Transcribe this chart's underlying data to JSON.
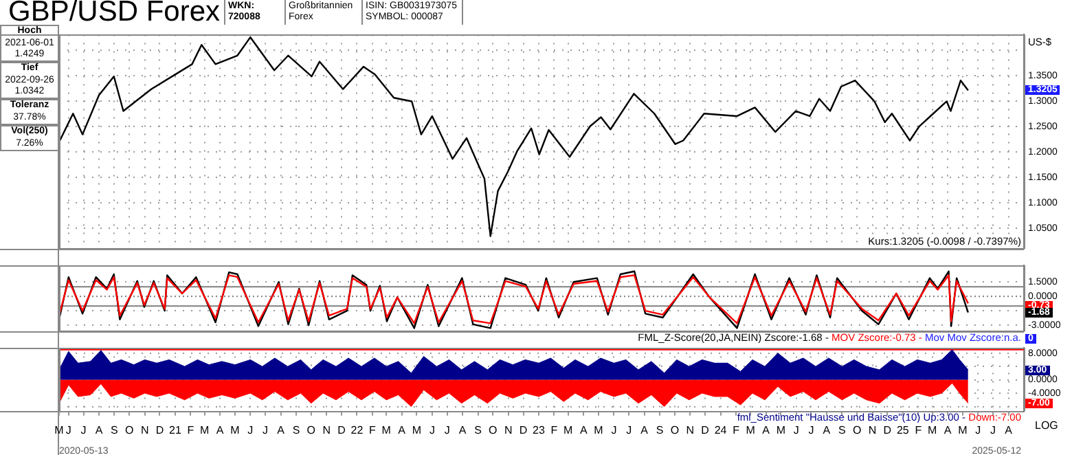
{
  "chart_data": [
    {
      "type": "line",
      "title": "GBP/USD Forex",
      "ylabel": "US-$",
      "color": "#000000",
      "x": [
        "2020-05-13",
        "2020-06-10",
        "2020-06-29",
        "2020-08-01",
        "2020-08-31",
        "2020-09-19",
        "2020-11-14",
        "2021-02-04",
        "2021-02-23",
        "2021-03-23",
        "2021-05-06",
        "2021-06-01",
        "2021-07-19",
        "2021-08-16",
        "2021-10-02",
        "2021-10-18",
        "2021-12-04",
        "2022-01-14",
        "2022-02-06",
        "2022-03-16",
        "2022-04-21",
        "2022-05-10",
        "2022-06-01",
        "2022-07-12",
        "2022-08-09",
        "2022-09-14",
        "2022-09-26",
        "2022-10-11",
        "2022-10-31",
        "2022-11-19",
        "2022-12-17",
        "2023-01-02",
        "2023-01-21",
        "2023-03-04",
        "2023-04-14",
        "2023-05-06",
        "2023-05-25",
        "2023-07-11",
        "2023-08-21",
        "2023-10-02",
        "2023-10-18",
        "2023-11-29",
        "2024-02-03",
        "2024-03-10",
        "2024-04-20",
        "2024-05-31",
        "2024-06-28",
        "2024-07-17",
        "2024-08-08",
        "2024-08-30",
        "2024-09-27",
        "2024-11-05",
        "2024-11-26",
        "2024-12-10",
        "2025-01-15",
        "2025-02-03",
        "2025-03-03",
        "2025-03-30",
        "2025-04-07",
        "2025-04-27",
        "2025-05-12"
      ],
      "values": [
        1.219,
        1.275,
        1.234,
        1.311,
        1.348,
        1.28,
        1.323,
        1.372,
        1.41,
        1.372,
        1.389,
        1.4249,
        1.36,
        1.389,
        1.348,
        1.377,
        1.323,
        1.367,
        1.352,
        1.306,
        1.299,
        1.234,
        1.27,
        1.186,
        1.227,
        1.147,
        1.0342,
        1.123,
        1.161,
        1.202,
        1.246,
        1.195,
        1.243,
        1.19,
        1.25,
        1.268,
        1.244,
        1.314,
        1.275,
        1.215,
        1.222,
        1.275,
        1.27,
        1.287,
        1.239,
        1.28,
        1.27,
        1.304,
        1.28,
        1.328,
        1.34,
        1.299,
        1.258,
        1.275,
        1.222,
        1.25,
        1.275,
        1.299,
        1.28,
        1.34,
        1.3205
      ],
      "xlim": [
        "2020-05-13",
        "2025-09-01"
      ],
      "ylim": [
        1.01,
        1.43
      ],
      "yticks": [
        {
          "value": 1.05,
          "label": "1.0500"
        },
        {
          "value": 1.1,
          "label": "1.1000"
        },
        {
          "value": 1.15,
          "label": "1.1500"
        },
        {
          "value": 1.2,
          "label": "1.2000"
        },
        {
          "value": 1.25,
          "label": "1.2500"
        },
        {
          "value": 1.3,
          "label": "1.3000"
        },
        {
          "value": 1.35,
          "label": "1.3500"
        },
        {
          "value": 1.4,
          "label": null
        }
      ],
      "xticks": [
        {
          "value": "2020-06-01",
          "label": null
        },
        {
          "value": "2020-07-01",
          "label": null
        },
        {
          "value": "2020-08-01",
          "label": null
        },
        {
          "value": "2020-09-01",
          "label": null
        },
        {
          "value": "2020-10-01",
          "label": null
        },
        {
          "value": "2020-11-01",
          "label": null
        },
        {
          "value": "2020-12-01",
          "label": null
        },
        {
          "value": "2021-01-01",
          "label": null
        },
        {
          "value": "2021-02-01",
          "label": null
        },
        {
          "value": "2021-03-01",
          "label": null
        },
        {
          "value": "2021-04-01",
          "label": null
        },
        {
          "value": "2021-05-01",
          "label": null
        },
        {
          "value": "2021-06-01",
          "label": null
        },
        {
          "value": "2021-07-01",
          "label": null
        },
        {
          "value": "2021-08-01",
          "label": null
        },
        {
          "value": "2021-09-01",
          "label": null
        },
        {
          "value": "2021-10-01",
          "label": null
        },
        {
          "value": "2021-11-01",
          "label": null
        },
        {
          "value": "2021-12-01",
          "label": null
        },
        {
          "value": "2022-01-01",
          "label": null
        },
        {
          "value": "2022-02-01",
          "label": null
        },
        {
          "value": "2022-03-01",
          "label": null
        },
        {
          "value": "2022-04-01",
          "label": null
        },
        {
          "value": "2022-05-01",
          "label": null
        },
        {
          "value": "2022-06-01",
          "label": null
        },
        {
          "value": "2022-07-01",
          "label": null
        },
        {
          "value": "2022-08-01",
          "label": null
        },
        {
          "value": "2022-09-01",
          "label": null
        },
        {
          "value": "2022-10-01",
          "label": null
        },
        {
          "value": "2022-11-01",
          "label": null
        },
        {
          "value": "2022-12-01",
          "label": null
        },
        {
          "value": "2023-01-01",
          "label": null
        },
        {
          "value": "2023-02-01",
          "label": null
        },
        {
          "value": "2023-03-01",
          "label": null
        },
        {
          "value": "2023-04-01",
          "label": null
        },
        {
          "value": "2023-05-01",
          "label": null
        },
        {
          "value": "2023-06-01",
          "label": null
        },
        {
          "value": "2023-07-01",
          "label": null
        },
        {
          "value": "2023-08-01",
          "label": null
        },
        {
          "value": "2023-09-01",
          "label": null
        },
        {
          "value": "2023-10-01",
          "label": null
        },
        {
          "value": "2023-11-01",
          "label": null
        },
        {
          "value": "2023-12-01",
          "label": null
        },
        {
          "value": "2024-01-01",
          "label": null
        },
        {
          "value": "2024-02-01",
          "label": null
        },
        {
          "value": "2024-03-01",
          "label": null
        },
        {
          "value": "2024-04-01",
          "label": null
        },
        {
          "value": "2024-05-01",
          "label": null
        },
        {
          "value": "2024-06-01",
          "label": null
        },
        {
          "value": "2024-07-01",
          "label": null
        },
        {
          "value": "2024-08-01",
          "label": null
        },
        {
          "value": "2024-09-01",
          "label": null
        },
        {
          "value": "2024-10-01",
          "label": null
        },
        {
          "value": "2024-11-01",
          "label": null
        },
        {
          "value": "2024-12-01",
          "label": null
        },
        {
          "value": "2025-01-01",
          "label": null
        },
        {
          "value": "2025-02-01",
          "label": null
        },
        {
          "value": "2025-03-01",
          "label": null
        },
        {
          "value": "2025-04-01",
          "label": null
        },
        {
          "value": "2025-05-01",
          "label": null
        },
        {
          "value": "2025-06-01",
          "label": null
        },
        {
          "value": "2025-07-01",
          "label": null
        },
        {
          "value": "2025-08-01",
          "label": null
        }
      ],
      "tick_labels": "y",
      "grid": true,
      "legend": false,
      "annotations": [
        "WKN: 720088",
        "Großbritannien Forex",
        "ISIN: GB0031973075",
        "SYMBOL: 000087",
        "Hoch",
        "2021-06-01",
        "1.4249",
        "Tief",
        "2022-09-26",
        "1.0342",
        "Toleranz",
        "37.78%",
        "Vol(250)",
        "7.26%",
        "Kurs:1.3205 (-0.0098 / -0.7397%)",
        "1.3205"
      ]
    },
    {
      "type": "line",
      "x": [
        "2020-05-13",
        "2020-06-01",
        "2020-06-29",
        "2020-07-26",
        "2020-08-17",
        "2020-08-31",
        "2020-09-12",
        "2020-10-17",
        "2020-10-31",
        "2020-11-19",
        "2020-12-11",
        "2020-12-16",
        "2021-01-15",
        "2021-02-12",
        "2021-03-23",
        "2021-04-19",
        "2021-05-06",
        "2021-06-17",
        "2021-07-28",
        "2021-08-16",
        "2021-09-07",
        "2021-09-26",
        "2021-10-18",
        "2021-11-06",
        "2021-12-12",
        "2021-12-23",
        "2022-01-20",
        "2022-01-28",
        "2022-02-16",
        "2022-03-02",
        "2022-03-23",
        "2022-04-26",
        "2022-05-23",
        "2022-06-14",
        "2022-07-31",
        "2022-08-22",
        "2022-09-26",
        "2022-10-26",
        "2022-12-06",
        "2022-12-31",
        "2023-01-16",
        "2023-02-10",
        "2023-03-12",
        "2023-04-28",
        "2023-05-20",
        "2023-06-14",
        "2023-07-12",
        "2023-08-03",
        "2023-09-07",
        "2023-11-07",
        "2023-12-10",
        "2024-02-03",
        "2024-03-10",
        "2024-04-12",
        "2024-05-18",
        "2024-06-20",
        "2024-07-12",
        "2024-08-08",
        "2024-08-22",
        "2024-10-11",
        "2024-11-13",
        "2024-12-19",
        "2025-01-13",
        "2025-02-24",
        "2025-03-12",
        "2025-04-03",
        "2025-04-08",
        "2025-04-19",
        "2025-05-12"
      ],
      "series": [
        {
          "name": "FML_Z-Score(20,JA,NEIN) Zscore:-1.68 -",
          "color": "#000000",
          "values": [
            -2.4,
            2.0,
            -1.8,
            2.0,
            0.8,
            2.3,
            -2.4,
            1.6,
            -1.1,
            1.6,
            -1.5,
            2.2,
            0.3,
            2.0,
            -2.7,
            2.5,
            2.3,
            -3.1,
            1.5,
            -2.9,
            0.8,
            -3.0,
            1.6,
            -2.4,
            -1.5,
            2.2,
            1.2,
            -1.5,
            1.1,
            -2.6,
            -0.1,
            -3.3,
            1.2,
            -3.1,
            1.9,
            -2.9,
            -3.3,
            1.9,
            1.2,
            -1.5,
            1.9,
            -2.2,
            1.5,
            1.9,
            -1.9,
            2.3,
            2.6,
            -1.8,
            -2.2,
            2.3,
            -0.1,
            -3.3,
            2.3,
            -2.4,
            1.9,
            -1.9,
            2.2,
            -2.2,
            1.9,
            -1.5,
            -2.9,
            0.3,
            -2.4,
            1.9,
            0.8,
            2.6,
            -3.1,
            1.9,
            -1.68
          ]
        },
        {
          "name": "MOV Zscore:-0.73 -",
          "color": "#ff0000",
          "values": [
            -2.0,
            1.7,
            -1.5,
            1.7,
            0.7,
            2.0,
            -2.0,
            1.4,
            -0.9,
            1.4,
            -1.3,
            1.9,
            0.3,
            1.7,
            -2.3,
            2.2,
            2.0,
            -2.7,
            1.3,
            -2.5,
            0.7,
            -2.6,
            1.4,
            -2.0,
            -1.3,
            1.9,
            1.0,
            -1.3,
            0.9,
            -2.2,
            -0.1,
            -2.8,
            1.0,
            -2.7,
            1.6,
            -2.5,
            -2.8,
            1.6,
            1.0,
            -1.3,
            1.6,
            -1.9,
            1.3,
            1.6,
            -1.6,
            2.0,
            2.2,
            -1.5,
            -1.9,
            2.0,
            -0.1,
            -2.8,
            2.0,
            -2.0,
            1.6,
            -1.6,
            1.9,
            -1.9,
            1.6,
            -1.3,
            -2.5,
            0.3,
            -2.0,
            1.6,
            0.7,
            2.2,
            -2.6,
            1.6,
            -0.73
          ]
        }
      ],
      "xlim": [
        "2020-05-13",
        "2025-09-01"
      ],
      "ylim": [
        -3.6,
        3.2
      ],
      "yticks": [
        {
          "value": -3,
          "label": "-3.0000"
        },
        {
          "value": -1.5,
          "label": null
        },
        {
          "value": 0,
          "label": "0.0000"
        },
        {
          "value": 1.5,
          "label": "1.5000"
        }
      ],
      "ref_lines": [
        {
          "axis": "y",
          "value": 1,
          "color": "#808080",
          "line_style": "solid"
        },
        {
          "axis": "y",
          "value": 0,
          "color": "#808080",
          "line_style": "dotted"
        },
        {
          "axis": "y",
          "value": -1,
          "color": "#808080",
          "line_style": "solid"
        }
      ],
      "tick_labels": "y",
      "grid": "y",
      "legend": "bottom right",
      "annotations": [
        "Mov Mov Zscore:n.a.",
        "0",
        "-0.73",
        "-1.68"
      ]
    },
    {
      "type": "area",
      "x": [
        "2020-05-13",
        "2020-06-01",
        "2020-06-20",
        "2020-07-15",
        "2020-08-05",
        "2020-08-25",
        "2020-09-15",
        "2020-10-10",
        "2020-11-01",
        "2020-11-25",
        "2020-12-20",
        "2021-01-20",
        "2021-02-15",
        "2021-03-10",
        "2021-04-05",
        "2021-05-01",
        "2021-06-01",
        "2021-06-25",
        "2021-07-20",
        "2021-08-15",
        "2021-09-10",
        "2021-10-01",
        "2021-10-25",
        "2021-11-20",
        "2021-12-15",
        "2022-01-10",
        "2022-02-05",
        "2022-03-01",
        "2022-03-25",
        "2022-04-20",
        "2022-05-15",
        "2022-06-10",
        "2022-07-05",
        "2022-07-30",
        "2022-08-25",
        "2022-09-20",
        "2022-10-15",
        "2022-11-10",
        "2022-12-05",
        "2023-01-01",
        "2023-01-25",
        "2023-02-20",
        "2023-03-15",
        "2023-04-10",
        "2023-05-05",
        "2023-06-01",
        "2023-06-25",
        "2023-07-20",
        "2023-08-15",
        "2023-09-10",
        "2023-10-05",
        "2023-10-30",
        "2023-11-25",
        "2023-12-20",
        "2024-01-15",
        "2024-02-10",
        "2024-03-05",
        "2024-03-30",
        "2024-04-25",
        "2024-05-20",
        "2024-06-15",
        "2024-07-10",
        "2024-08-05",
        "2024-09-01",
        "2024-09-25",
        "2024-10-20",
        "2024-11-15",
        "2024-12-10",
        "2025-01-05",
        "2025-01-30",
        "2025-02-25",
        "2025-03-20",
        "2025-04-10",
        "2025-04-25",
        "2025-05-12"
      ],
      "series": [
        {
          "name": "fml_Sentiment \"Hausse und Baisse\"(10) Up:3.00 -",
          "color": "#00008b",
          "values": [
            3,
            8.5,
            5,
            5.5,
            8.8,
            5,
            6,
            4.5,
            6,
            5,
            6,
            4,
            6,
            4.5,
            5.5,
            4.5,
            6,
            4,
            6.5,
            4,
            6,
            3,
            6,
            4,
            6.5,
            4,
            6.5,
            4,
            5.5,
            2,
            7,
            4,
            6,
            3,
            5.5,
            3,
            6,
            4.5,
            6,
            5,
            6.5,
            3.5,
            6,
            4,
            6.5,
            5,
            6,
            3,
            5.5,
            2,
            6,
            4,
            6,
            5,
            5,
            2.5,
            6,
            4,
            8,
            5,
            6.5,
            4,
            6.5,
            4,
            6,
            4,
            3,
            6,
            4,
            6,
            5,
            6,
            9,
            6,
            3
          ]
        },
        {
          "name": "Down:-7.00",
          "color": "#ff0000",
          "values": [
            -7,
            -1.5,
            -5,
            -4.5,
            -1.2,
            -5,
            -4,
            -5.5,
            -4,
            -5,
            -4,
            -6,
            -4,
            -5.5,
            -4.5,
            -5.5,
            -4,
            -6,
            -3.5,
            -6,
            -4,
            -7,
            -4,
            -6,
            -3.5,
            -6,
            -3.5,
            -6,
            -4.5,
            -8,
            -3,
            -6,
            -4,
            -7,
            -4.5,
            -7,
            -4,
            -5.5,
            -4,
            -5,
            -3.5,
            -6.5,
            -4,
            -6,
            -3.5,
            -5,
            -4,
            -7,
            -4.5,
            -8,
            -4,
            -6,
            -4,
            -5,
            -5,
            -7.5,
            -4,
            -6,
            -2,
            -5,
            -3.5,
            -6,
            -3.5,
            -6,
            -4,
            -6,
            -7,
            -4,
            -6,
            -4,
            -5,
            -4,
            -1,
            -4,
            -7
          ]
        }
      ],
      "xlim": [
        "2020-05-13",
        "2025-09-01"
      ],
      "ylim": [
        -9.5,
        9.5
      ],
      "yticks": [
        {
          "value": -8,
          "label": null
        },
        {
          "value": -4,
          "label": "-4.0000"
        },
        {
          "value": 0,
          "label": "0.0000"
        },
        {
          "value": 4,
          "label": null
        },
        {
          "value": 8,
          "label": "8.0000"
        }
      ],
      "ref_lines": [
        {
          "axis": "y",
          "value": 9,
          "color": "#ff0000",
          "line_style": "solid"
        }
      ],
      "xticks": [
        {
          "value": "2020-05-13",
          "label": "M"
        },
        {
          "value": "2020-06-01",
          "label": "J"
        },
        {
          "value": "2020-07-01",
          "label": "J"
        },
        {
          "value": "2020-08-01",
          "label": "A"
        },
        {
          "value": "2020-09-01",
          "label": "S"
        },
        {
          "value": "2020-10-01",
          "label": "O"
        },
        {
          "value": "2020-11-01",
          "label": "N"
        },
        {
          "value": "2020-12-01",
          "label": "D"
        },
        {
          "value": "2021-01-01",
          "label": "21"
        },
        {
          "value": "2021-02-01",
          "label": "F"
        },
        {
          "value": "2021-03-01",
          "label": "M"
        },
        {
          "value": "2021-04-01",
          "label": "A"
        },
        {
          "value": "2021-05-01",
          "label": "M"
        },
        {
          "value": "2021-06-01",
          "label": "J"
        },
        {
          "value": "2021-07-01",
          "label": "J"
        },
        {
          "value": "2021-08-01",
          "label": "A"
        },
        {
          "value": "2021-09-01",
          "label": "S"
        },
        {
          "value": "2021-10-01",
          "label": "O"
        },
        {
          "value": "2021-11-01",
          "label": "N"
        },
        {
          "value": "2021-12-01",
          "label": "D"
        },
        {
          "value": "2022-01-01",
          "label": "22"
        },
        {
          "value": "2022-02-01",
          "label": "F"
        },
        {
          "value": "2022-03-01",
          "label": "M"
        },
        {
          "value": "2022-04-01",
          "label": "A"
        },
        {
          "value": "2022-05-01",
          "label": "M"
        },
        {
          "value": "2022-06-01",
          "label": "J"
        },
        {
          "value": "2022-07-01",
          "label": "J"
        },
        {
          "value": "2022-08-01",
          "label": "A"
        },
        {
          "value": "2022-09-01",
          "label": "S"
        },
        {
          "value": "2022-10-01",
          "label": "O"
        },
        {
          "value": "2022-11-01",
          "label": "N"
        },
        {
          "value": "2022-12-01",
          "label": "D"
        },
        {
          "value": "2023-01-01",
          "label": "23"
        },
        {
          "value": "2023-02-01",
          "label": "F"
        },
        {
          "value": "2023-03-01",
          "label": "M"
        },
        {
          "value": "2023-04-01",
          "label": "A"
        },
        {
          "value": "2023-05-01",
          "label": "M"
        },
        {
          "value": "2023-06-01",
          "label": "J"
        },
        {
          "value": "2023-07-01",
          "label": "J"
        },
        {
          "value": "2023-08-01",
          "label": "A"
        },
        {
          "value": "2023-09-01",
          "label": "S"
        },
        {
          "value": "2023-10-01",
          "label": "O"
        },
        {
          "value": "2023-11-01",
          "label": "N"
        },
        {
          "value": "2023-12-01",
          "label": "D"
        },
        {
          "value": "2024-01-01",
          "label": "24"
        },
        {
          "value": "2024-02-01",
          "label": "F"
        },
        {
          "value": "2024-03-01",
          "label": "M"
        },
        {
          "value": "2024-04-01",
          "label": "A"
        },
        {
          "value": "2024-05-01",
          "label": "M"
        },
        {
          "value": "2024-06-01",
          "label": "J"
        },
        {
          "value": "2024-07-01",
          "label": "J"
        },
        {
          "value": "2024-08-01",
          "label": "A"
        },
        {
          "value": "2024-09-01",
          "label": "S"
        },
        {
          "value": "2024-10-01",
          "label": "O"
        },
        {
          "value": "2024-11-01",
          "label": "N"
        },
        {
          "value": "2024-12-01",
          "label": "D"
        },
        {
          "value": "2025-01-01",
          "label": "25"
        },
        {
          "value": "2025-02-01",
          "label": "F"
        },
        {
          "value": "2025-03-01",
          "label": "M"
        },
        {
          "value": "2025-04-01",
          "label": "A"
        },
        {
          "value": "2025-05-01",
          "label": "M"
        },
        {
          "value": "2025-06-01",
          "label": "J"
        },
        {
          "value": "2025-07-01",
          "label": "J"
        },
        {
          "value": "2025-08-01",
          "label": "A"
        }
      ],
      "grid": true,
      "legend": "bottom right",
      "annotations": [
        "2020-05-13",
        "2025-05-12",
        "LOG",
        "3.00",
        "-7.00"
      ]
    }
  ]
}
